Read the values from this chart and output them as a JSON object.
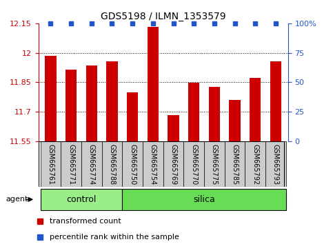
{
  "title": "GDS5198 / ILMN_1353579",
  "samples": [
    "GSM665761",
    "GSM665771",
    "GSM665774",
    "GSM665788",
    "GSM665750",
    "GSM665754",
    "GSM665769",
    "GSM665770",
    "GSM665775",
    "GSM665785",
    "GSM665792",
    "GSM665793"
  ],
  "red_values": [
    11.985,
    11.915,
    11.935,
    11.955,
    11.8,
    12.13,
    11.685,
    11.848,
    11.828,
    11.76,
    11.873,
    11.955
  ],
  "blue_values": [
    100,
    100,
    100,
    100,
    100,
    100,
    100,
    100,
    100,
    100,
    100,
    100
  ],
  "ylim_left": [
    11.55,
    12.15
  ],
  "ylim_right": [
    0,
    100
  ],
  "yticks_left": [
    11.55,
    11.7,
    11.85,
    12.0,
    12.15
  ],
  "yticks_right": [
    0,
    25,
    50,
    75,
    100
  ],
  "ytick_labels_left": [
    "11.55",
    "11.7",
    "11.85",
    "12",
    "12.15"
  ],
  "ytick_labels_right": [
    "0",
    "25",
    "50",
    "75",
    "100%"
  ],
  "control_count": 4,
  "silica_count": 8,
  "control_label": "control",
  "silica_label": "silica",
  "agent_label": "agent",
  "legend_red": "transformed count",
  "legend_blue": "percentile rank within the sample",
  "bar_color": "#cc0000",
  "dot_color": "#2255cc",
  "control_bg": "#99ee88",
  "silica_bg": "#66dd55",
  "sample_bg": "#cccccc",
  "bar_width": 0.55,
  "title_fontsize": 10,
  "tick_fontsize": 8,
  "label_fontsize": 8,
  "legend_fontsize": 8
}
